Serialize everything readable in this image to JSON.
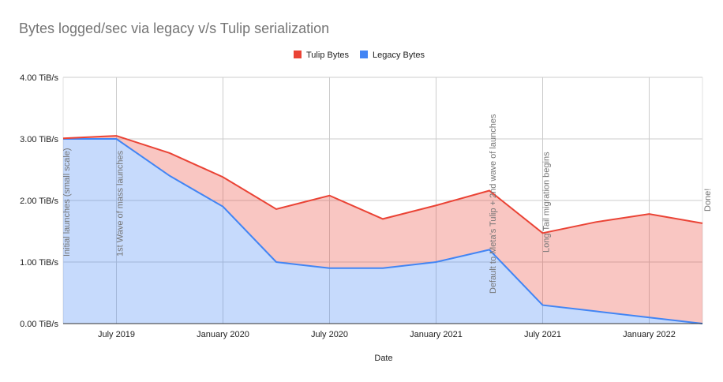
{
  "chart_data": {
    "type": "area",
    "stacked": true,
    "title": "Bytes logged/sec via legacy v/s Tulip serialization",
    "xlabel": "Date",
    "ylabel": "",
    "x": [
      "2019-04",
      "2019-07",
      "2019-10",
      "2020-01",
      "2020-04",
      "2020-07",
      "2020-10",
      "2021-01",
      "2021-04",
      "2021-07",
      "2021-10",
      "2022-01",
      "2022-04"
    ],
    "x_ticks": [
      "July 2019",
      "January 2020",
      "July 2020",
      "January 2021",
      "July 2021",
      "January 2022"
    ],
    "y_ticks": [
      "0.00 TiB/s",
      "1.00 TiB/s",
      "2.00 TiB/s",
      "3.00 TiB/s",
      "4.00 TiB/s"
    ],
    "ylim": [
      0,
      4
    ],
    "y_unit": "TiB/s",
    "grid": true,
    "legend_position": "top",
    "series": [
      {
        "name": "Tulip Bytes",
        "color": "#ea4335",
        "values": [
          0.01,
          0.05,
          0.37,
          0.48,
          0.86,
          1.18,
          0.8,
          0.92,
          0.96,
          1.17,
          1.45,
          1.68,
          1.63
        ]
      },
      {
        "name": "Legacy Bytes",
        "color": "#4285f4",
        "values": [
          3.0,
          3.0,
          2.4,
          1.9,
          1.0,
          0.9,
          0.9,
          1.0,
          1.2,
          0.3,
          0.2,
          0.1,
          0.0
        ]
      }
    ],
    "annotations": [
      {
        "x": "2019-04",
        "text": "Initial launches (small scale)"
      },
      {
        "x": "2019-07",
        "text": "1st Wave of mass launches"
      },
      {
        "x": "2021-04",
        "text": "Default to Meta's Tulip + 2nd wave of launches"
      },
      {
        "x": "2021-07",
        "text": "Long Tail migration begins"
      },
      {
        "x": "2022-04",
        "text": "Done!"
      }
    ]
  }
}
